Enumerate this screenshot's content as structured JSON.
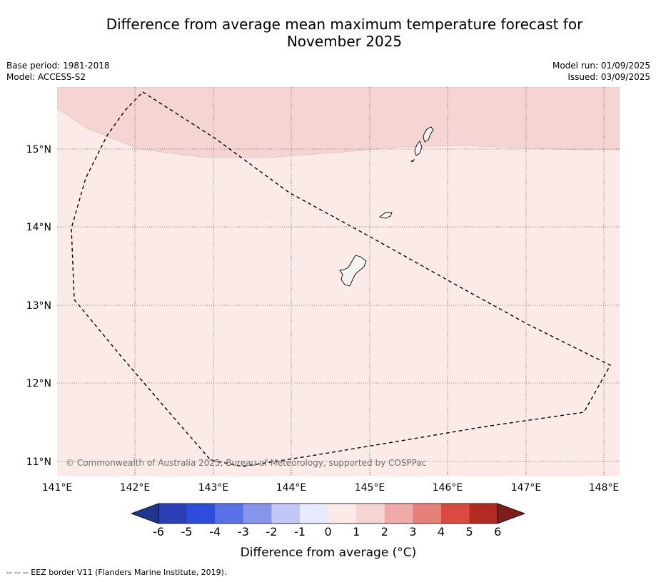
{
  "title_line1": "Difference from average mean maximum temperature forecast for",
  "title_line2": "November 2025",
  "meta_left": {
    "base_period": "Base period: 1981-2018",
    "model": "Model: ACCESS-S2"
  },
  "meta_right": {
    "model_run": "Model run: 01/09/2025",
    "issued": "Issued: 03/09/2025"
  },
  "map": {
    "lat_labels": [
      "15°N",
      "14°N",
      "13°N",
      "12°N",
      "11°N"
    ],
    "lon_labels": [
      "141°E",
      "142°E",
      "143°E",
      "144°E",
      "145°E",
      "146°E",
      "147°E",
      "148°E"
    ],
    "copyright": "© Commonwealth of Australia 2025, Bureau of Meteorology, supported by COSPPac",
    "zone_colors": {
      "anomaly_0_to_1": "#fbeae8",
      "anomaly_1_to_2": "#f5d5d3"
    }
  },
  "colorbar": {
    "tick_labels": [
      "-6",
      "-5",
      "-4",
      "-3",
      "-2",
      "-1",
      "0",
      "1",
      "2",
      "3",
      "4",
      "5",
      "6"
    ],
    "colors": [
      "#1f3590",
      "#2a3eb6",
      "#2f4ddd",
      "#5a72e5",
      "#8595ea",
      "#c1c8f5",
      "#e7ebfb",
      "#fbeae8",
      "#f5d5d3",
      "#eeaba7",
      "#e6807a",
      "#da4a41",
      "#b32a23",
      "#7d1e1a"
    ],
    "title": "Difference from average (°C)"
  },
  "footnote": "--  --  -- EEZ border V11 (Flanders Marine Institute, 2019)."
}
